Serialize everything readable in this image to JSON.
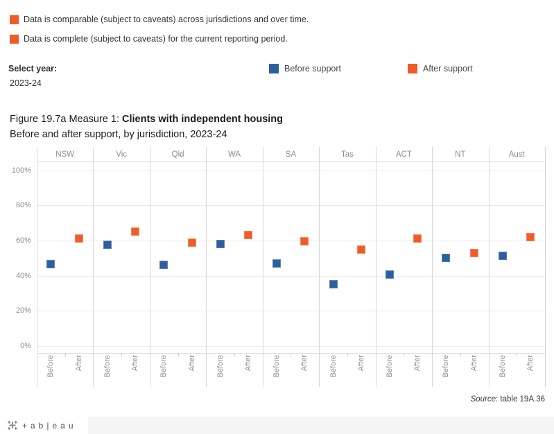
{
  "caveats": [
    {
      "text": "Data is comparable (subject to caveats) across jurisdictions and over time."
    },
    {
      "text": "Data is complete (subject to caveats) for the current reporting period."
    }
  ],
  "controls": {
    "select_year_label": "Select year:",
    "select_year_value": "2023-24"
  },
  "legend": {
    "before_label": "Before support",
    "after_label": "After support"
  },
  "title": {
    "prefix": "Figure 19.7a Measure 1: ",
    "bold": "Clients with independent housing",
    "line2": "Before and after support, by jurisdiction, 2023-24"
  },
  "source": {
    "italic": "Source",
    "rest": ": table 19A.36"
  },
  "footer": {
    "logo_text": "+ab|eau"
  },
  "colors": {
    "before_blue": "#2d5f9e",
    "after_orange": "#f15b27",
    "caveat_orange": "#f15b27"
  },
  "chart_data": {
    "type": "scatter",
    "title": "Figure 19.7a Measure 1: Clients with independent housing",
    "subtitle": "Before and after support, by jurisdiction, 2023-24",
    "categories": [
      "NSW",
      "Vic",
      "Qld",
      "WA",
      "SA",
      "Tas",
      "ACT",
      "NT",
      "Aust"
    ],
    "x_sublabels": [
      "Before",
      "After"
    ],
    "series": [
      {
        "name": "Before support",
        "color": "#2d5f9e",
        "border": "#5c82b4",
        "values": [
          46.5,
          57.5,
          46,
          58,
          47,
          35,
          40.5,
          50,
          51.5
        ]
      },
      {
        "name": "After support",
        "color": "#f15b27",
        "border": "#f48b61",
        "values": [
          61,
          65,
          59,
          63,
          59.5,
          55,
          61,
          53,
          62
        ]
      }
    ],
    "ylabel": "",
    "xlabel": "",
    "ylim": [
      0,
      100
    ],
    "yticks": [
      "0%",
      "20%",
      "40%",
      "60%",
      "80%",
      "100%"
    ],
    "grid": true,
    "legend_position": "top"
  }
}
